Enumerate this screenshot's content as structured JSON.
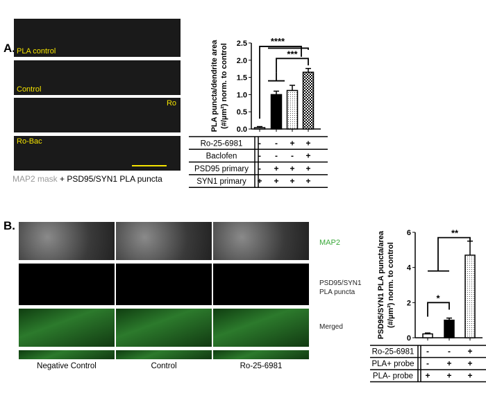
{
  "panel_a": {
    "label": "A.",
    "image_labels": [
      "PLA control",
      "Control",
      "Ro",
      "Ro-Bac"
    ],
    "caption_gray": "MAP2 mask",
    "caption_rest": " + PSD95/SYN1 PLA puncta"
  },
  "panel_b": {
    "label": "B.",
    "row_labels": [
      "MAP2",
      "PSD95/SYN1",
      "PLA puncta",
      "Merged"
    ],
    "column_labels": [
      "Negative Control",
      "Control",
      "Ro-25-6981"
    ],
    "colors": {
      "map2": "#3aa83a",
      "arrow": "#f5e400",
      "nuclei": "#3050c0"
    }
  },
  "chart_data": [
    {
      "type": "bar",
      "ylabel_line1": "PLA puncta/dendrite area",
      "ylabel_line2": "(#/µm²) norm. to control",
      "ylim": [
        0,
        2.5
      ],
      "yticks": [
        "0.0",
        "0.5",
        "1.0",
        "1.5",
        "2.0",
        "2.5"
      ],
      "values": [
        0.04,
        1.0,
        1.12,
        1.65
      ],
      "errors": [
        0.03,
        0.1,
        0.15,
        0.11
      ],
      "fills": [
        "white",
        "black",
        "dots",
        "checker"
      ],
      "significance": [
        "****",
        "***"
      ],
      "table": [
        {
          "label": "Ro-25-6981",
          "cells": [
            "-",
            "-",
            "+",
            "+"
          ]
        },
        {
          "label": "Baclofen",
          "cells": [
            "-",
            "-",
            "-",
            "+"
          ]
        },
        {
          "label": "PSD95 primary",
          "cells": [
            "-",
            "+",
            "+",
            "+"
          ]
        },
        {
          "label": "SYN1 primary",
          "cells": [
            "+",
            "+",
            "+",
            "+"
          ]
        }
      ]
    },
    {
      "type": "bar",
      "ylabel_line1": "PSD95/SYN1 PLA puncta/area",
      "ylabel_line2": "(#/µm²) norm. to control",
      "ylim": [
        0,
        6
      ],
      "yticks": [
        "0",
        "2",
        "4",
        "6"
      ],
      "values": [
        0.22,
        1.0,
        4.7
      ],
      "errors": [
        0.05,
        0.12,
        0.8
      ],
      "fills": [
        "white",
        "black",
        "dots"
      ],
      "significance": [
        "*",
        "**"
      ],
      "table": [
        {
          "label": "Ro-25-6981",
          "cells": [
            "-",
            "-",
            "+"
          ]
        },
        {
          "label": "PLA+ probe",
          "cells": [
            "-",
            "+",
            "+"
          ]
        },
        {
          "label": "PLA- probe",
          "cells": [
            "+",
            "+",
            "+"
          ]
        }
      ]
    }
  ]
}
